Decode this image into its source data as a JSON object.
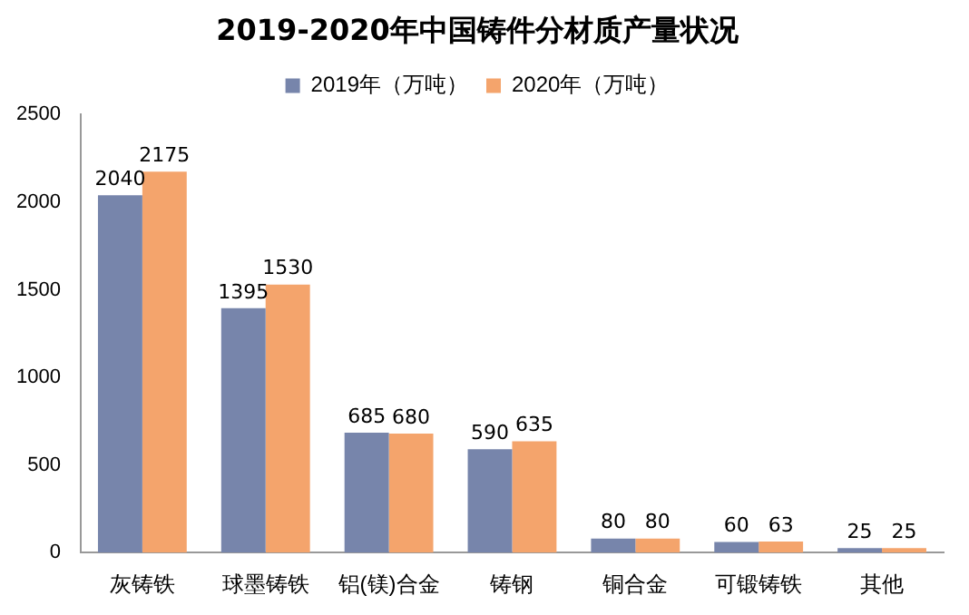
{
  "chart_data": {
    "type": "bar",
    "title": "2019-2020年中国铸件分材质产量状况",
    "categories": [
      "灰铸铁",
      "球墨铸铁",
      "铝(镁)合金",
      "铸钢",
      "铜合金",
      "可锻铸铁",
      "其他"
    ],
    "series": [
      {
        "name": "2019年（万吨）",
        "color": "#7785ab",
        "values": [
          2040,
          1395,
          685,
          590,
          80,
          60,
          25
        ]
      },
      {
        "name": "2020年（万吨）",
        "color": "#f4a46c",
        "values": [
          2175,
          1530,
          680,
          635,
          80,
          63,
          25
        ]
      }
    ],
    "ylim": [
      0,
      2500
    ],
    "yticks": [
      0,
      500,
      1000,
      1500,
      2000,
      2500
    ],
    "grid": false,
    "legend": "top",
    "data_labels": true
  }
}
